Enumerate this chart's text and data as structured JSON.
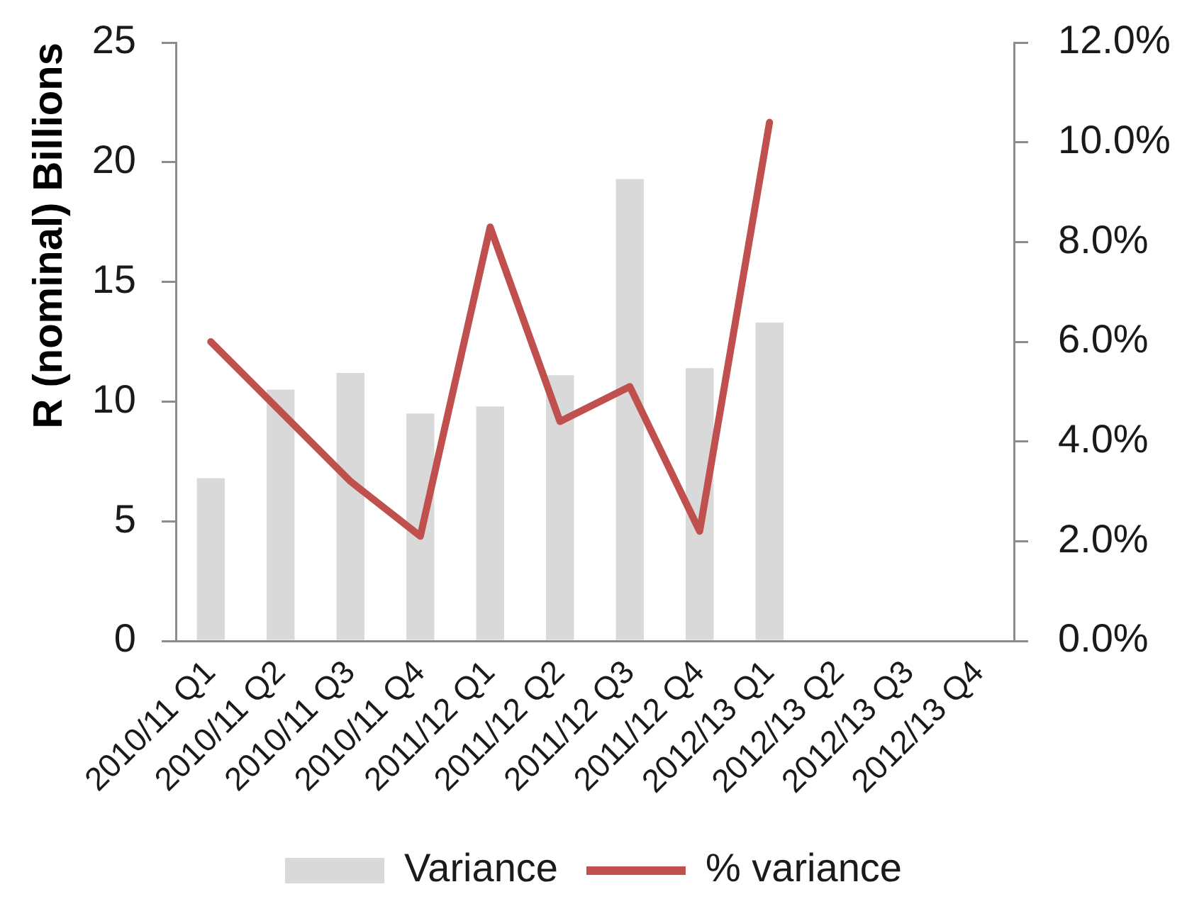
{
  "chart_data": {
    "type": "bar",
    "categories": [
      "2010/11 Q1",
      "2010/11 Q2",
      "2010/11 Q3",
      "2010/11 Q4",
      "2011/12 Q1",
      "2011/12 Q2",
      "2011/12 Q3",
      "2011/12 Q4",
      "2012/13 Q1",
      "2012/13 Q2",
      "2012/13 Q3",
      "2012/13 Q4"
    ],
    "ylabel": "R (nominal) Billions",
    "ylim": [
      0,
      25
    ],
    "yticks": [
      0,
      5,
      10,
      15,
      20,
      25
    ],
    "y2lim": [
      0,
      12
    ],
    "y2ticks": [
      {
        "value": 0,
        "label": "0.0%"
      },
      {
        "value": 2,
        "label": "2.0%"
      },
      {
        "value": 4,
        "label": "4.0%"
      },
      {
        "value": 6,
        "label": "6.0%"
      },
      {
        "value": 8,
        "label": "8.0%"
      },
      {
        "value": 10,
        "label": "10.0%"
      },
      {
        "value": 12,
        "label": "12.0%"
      }
    ],
    "series": [
      {
        "name": "Variance",
        "color": "#d9d9d9",
        "values": [
          6.8,
          10.5,
          11.2,
          9.5,
          9.8,
          11.1,
          19.3,
          11.4,
          13.3,
          null,
          null,
          null
        ]
      },
      {
        "name": "% variance",
        "type": "line",
        "axis": "y2",
        "color": "#c0504d",
        "values": [
          6.0,
          4.6,
          3.2,
          2.1,
          8.3,
          4.4,
          5.1,
          2.2,
          10.4,
          null,
          null,
          null
        ]
      }
    ],
    "legend": "bottom",
    "grid": false,
    "marker": "none",
    "line_style": "solid"
  }
}
